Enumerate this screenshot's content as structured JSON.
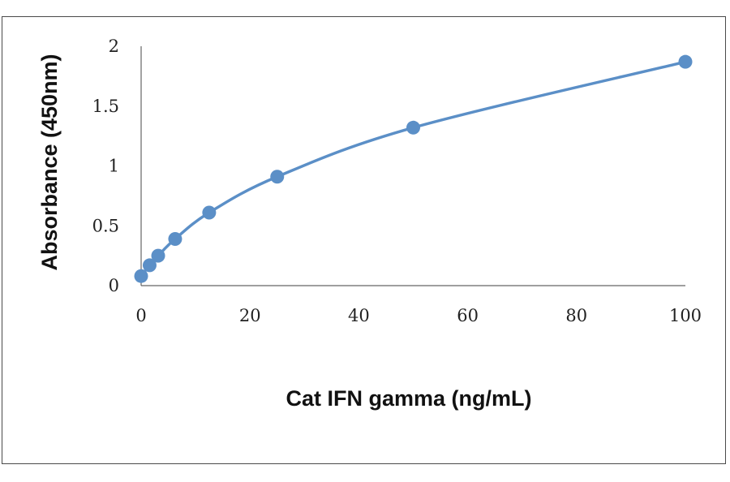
{
  "chart_data": {
    "type": "line",
    "title": "",
    "xlabel": "Cat IFN gamma (ng/mL)",
    "ylabel": "Absorbance (450nm)",
    "xlim": [
      0,
      100
    ],
    "ylim": [
      0,
      2
    ],
    "x_ticks": [
      "0",
      "20",
      "40",
      "60",
      "80",
      "100"
    ],
    "y_ticks": [
      "0",
      "0.5",
      "1",
      "1.5",
      "2"
    ],
    "grid": false,
    "legend": "none",
    "series": [
      {
        "color": "#5b8fc7",
        "x": [
          0,
          1.56,
          3.13,
          6.25,
          12.5,
          25,
          50,
          100
        ],
        "y": [
          0.08,
          0.17,
          0.25,
          0.39,
          0.61,
          0.91,
          1.32,
          1.87
        ]
      }
    ]
  }
}
